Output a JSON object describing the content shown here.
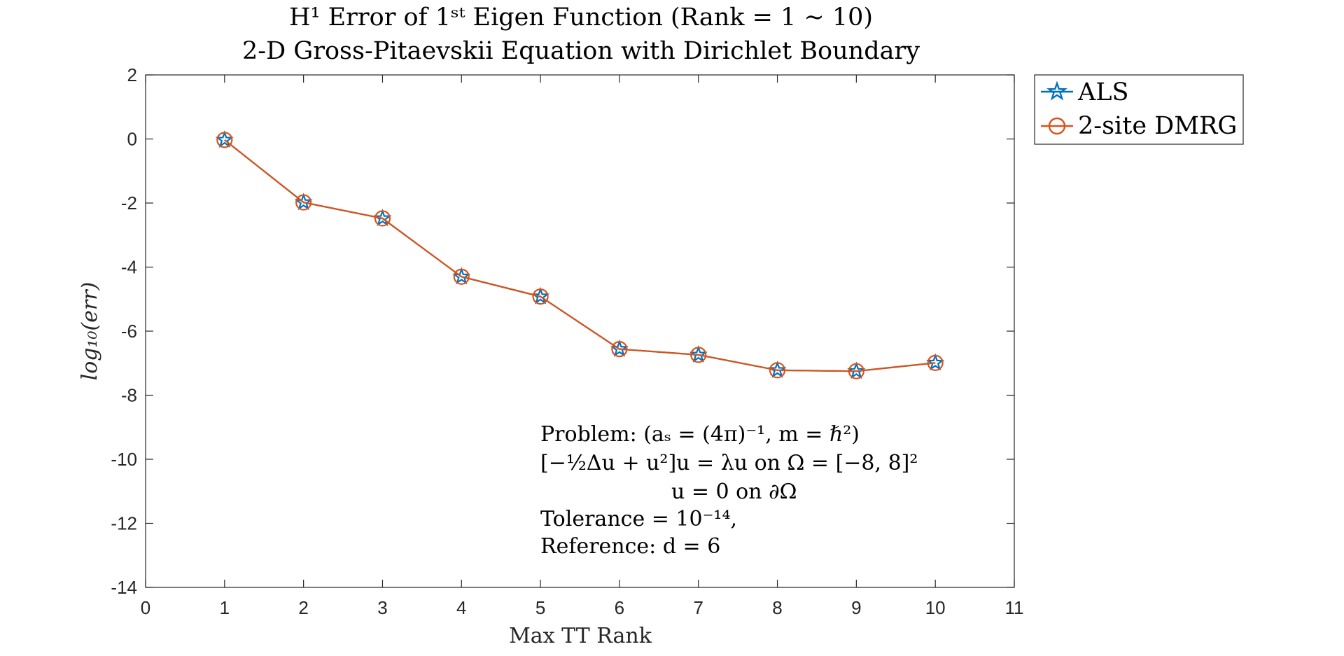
{
  "chart_data": {
    "type": "line",
    "title": "H¹ Error of 1ˢᵗ Eigen Function (Rank = 1 ∼ 10)",
    "subtitle": "2-D Gross-Pitaevskii Equation with Dirichlet Boundary",
    "xlabel": "Max TT Rank",
    "ylabel": "log₁₀(err)",
    "xlim": [
      0,
      11
    ],
    "ylim": [
      -14,
      2
    ],
    "xticks": [
      0,
      1,
      2,
      3,
      4,
      5,
      6,
      7,
      8,
      9,
      10,
      11
    ],
    "yticks": [
      2,
      0,
      -2,
      -4,
      -6,
      -8,
      -10,
      -12,
      -14
    ],
    "grid": false,
    "legend_position": "outside-top-right",
    "x": [
      1,
      2,
      3,
      4,
      5,
      6,
      7,
      8,
      9,
      10
    ],
    "series": [
      {
        "name": "ALS",
        "marker": "pentagram",
        "color": "#0072BD",
        "values": [
          -0.03,
          -1.98,
          -2.48,
          -4.3,
          -4.92,
          -6.56,
          -6.74,
          -7.22,
          -7.25,
          -6.99
        ]
      },
      {
        "name": "2-site DMRG",
        "marker": "circle",
        "color": "#D95319",
        "values": [
          -0.03,
          -1.98,
          -2.48,
          -4.3,
          -4.92,
          -6.56,
          -6.74,
          -7.22,
          -7.25,
          -6.99
        ]
      }
    ],
    "annotation": [
      "Problem:   (aₛ = (4π)⁻¹,  m = ℏ²)",
      "[−½Δu + u²]u = λu   on   Ω = [−8, 8]²",
      "u = 0      on   ∂Ω",
      "Tolerance = 10⁻¹⁴,",
      "Reference: d = 6"
    ]
  }
}
